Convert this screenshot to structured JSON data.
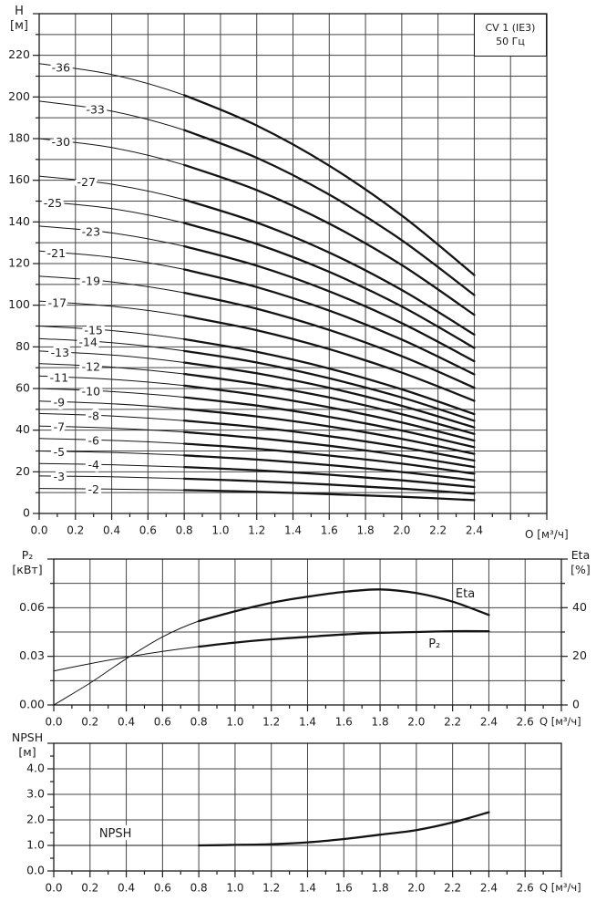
{
  "title_box": {
    "model": "CV 1 (IE3)",
    "frequency": "50 Гц"
  },
  "chart_data": [
    {
      "id": "head-capacity",
      "type": "line",
      "title": "Pump head curves per number of stages",
      "y_label_1": "H",
      "y_label_2": "[м]",
      "x_label": "O [м³/ч]",
      "xlim": [
        0,
        2.8
      ],
      "ylim": [
        0,
        240
      ],
      "x_grid_step": 0.2,
      "y_grid_step": 10,
      "x_minor_step": 0.1,
      "x_label_step": 0.2,
      "y_label_step": 20,
      "grid": true,
      "x_tick_labels": [
        "0.0",
        "0.2",
        "0.4",
        "0.6",
        "0.8",
        "1.0",
        "1.2",
        "1.4",
        "1.6",
        "1.8",
        "2.0",
        "2.2",
        "2.4"
      ],
      "y_tick_labels": [
        "0",
        "20",
        "40",
        "60",
        "80",
        "100",
        "120",
        "140",
        "160",
        "180",
        "200",
        "220"
      ],
      "q": [
        0,
        0.4,
        0.8,
        1.2,
        1.6,
        2.0,
        2.4
      ],
      "bold_from_q": 0.8,
      "curves": [
        {
          "label": "-36",
          "label_q": 0.12,
          "values": [
            216,
            210.8,
            200.9,
            186.3,
            167.0,
            143.1,
            114.5
          ]
        },
        {
          "label": "-33",
          "label_q": 0.31,
          "values": [
            198,
            193.2,
            184.1,
            170.8,
            153.1,
            131.2,
            104.9
          ]
        },
        {
          "label": "-30",
          "label_q": 0.12,
          "values": [
            180,
            175.7,
            167.4,
            155.3,
            139.2,
            119.3,
            95.4
          ]
        },
        {
          "label": "-27",
          "label_q": 0.26,
          "values": [
            162,
            158.1,
            150.7,
            139.7,
            125.3,
            107.3,
            85.9
          ]
        },
        {
          "label": "-25",
          "label_q": 0.075,
          "values": [
            150,
            146.4,
            139.5,
            129.4,
            116.0,
            99.4,
            79.5
          ]
        },
        {
          "label": "-23",
          "label_q": 0.286,
          "values": [
            138,
            134.7,
            128.3,
            119.0,
            106.7,
            91.4,
            73.1
          ]
        },
        {
          "label": "-21",
          "label_q": 0.095,
          "values": [
            126,
            123.0,
            117.2,
            108.7,
            97.4,
            83.5,
            66.8
          ]
        },
        {
          "label": "-19",
          "label_q": 0.286,
          "values": [
            114,
            111.2,
            106.0,
            98.3,
            88.1,
            75.5,
            60.4
          ]
        },
        {
          "label": "-17",
          "label_q": 0.1,
          "values": [
            102,
            99.5,
            94.9,
            88.0,
            78.9,
            67.6,
            54.1
          ]
        },
        {
          "label": "-15",
          "label_q": 0.3,
          "values": [
            90,
            87.8,
            83.7,
            77.6,
            69.6,
            59.6,
            47.7
          ]
        },
        {
          "label": "-14",
          "label_q": 0.27,
          "values": [
            84,
            82.0,
            78.1,
            72.5,
            64.9,
            55.7,
            44.5
          ]
        },
        {
          "label": "-13",
          "label_q": 0.115,
          "values": [
            78,
            76.1,
            72.5,
            67.3,
            60.3,
            51.7,
            41.3
          ]
        },
        {
          "label": "-12",
          "label_q": 0.286,
          "values": [
            72,
            70.3,
            67.0,
            62.1,
            55.7,
            47.7,
            38.2
          ]
        },
        {
          "label": "-11",
          "label_q": 0.11,
          "values": [
            66,
            64.4,
            61.4,
            56.9,
            51.0,
            43.7,
            35.0
          ]
        },
        {
          "label": "-10",
          "label_q": 0.286,
          "values": [
            60,
            58.5,
            55.8,
            51.8,
            46.4,
            39.8,
            31.8
          ]
        },
        {
          "label": "-9",
          "label_q": 0.11,
          "values": [
            54,
            52.7,
            50.2,
            46.6,
            41.8,
            35.8,
            28.6
          ]
        },
        {
          "label": "-8",
          "label_q": 0.3,
          "values": [
            48,
            46.8,
            44.6,
            41.4,
            37.1,
            31.8,
            25.4
          ]
        },
        {
          "label": "-7",
          "label_q": 0.11,
          "values": [
            42,
            41.0,
            39.1,
            36.2,
            32.5,
            27.8,
            22.3
          ]
        },
        {
          "label": "-6",
          "label_q": 0.3,
          "values": [
            36,
            35.1,
            33.5,
            31.1,
            27.8,
            23.9,
            19.1
          ]
        },
        {
          "label": "-5",
          "label_q": 0.11,
          "values": [
            30,
            29.3,
            27.9,
            25.9,
            23.2,
            19.9,
            15.9
          ]
        },
        {
          "label": "-4",
          "label_q": 0.3,
          "values": [
            24,
            23.4,
            22.3,
            20.7,
            18.6,
            15.9,
            12.7
          ]
        },
        {
          "label": "-3",
          "label_q": 0.11,
          "values": [
            18,
            17.6,
            16.7,
            15.5,
            13.9,
            11.9,
            9.5
          ]
        },
        {
          "label": "-2",
          "label_q": 0.3,
          "values": [
            12,
            11.7,
            11.2,
            10.4,
            9.3,
            8.0,
            6.4
          ]
        }
      ]
    },
    {
      "id": "power-efficiency",
      "type": "line",
      "title": "Shaft power P2 and efficiency Eta",
      "y_left_1": "P₂",
      "y_left_2": "[кВт]",
      "y_right_1": "Eta",
      "y_right_2": "[%]",
      "x_label": "Q [м³/ч]",
      "xlim": [
        0,
        2.8
      ],
      "ylim_left": [
        0,
        0.09
      ],
      "ylim_right": [
        0,
        60
      ],
      "x_grid_step": 0.2,
      "y_grid_step_left": 0.015,
      "x_minor_step": 0.1,
      "x_label_step": 0.2,
      "y_left_label_step": 0.03,
      "y_right_label_step": 20,
      "grid": true,
      "x_tick_labels": [
        "0.0",
        "0.2",
        "0.4",
        "0.6",
        "0.8",
        "1.0",
        "1.2",
        "1.4",
        "1.6",
        "1.8",
        "2.0",
        "2.2",
        "2.4",
        "2.6"
      ],
      "y_left_tick_labels": [
        "0.00",
        "0.03",
        "0.06"
      ],
      "y_right_tick_labels": [
        "0",
        "20",
        "40"
      ],
      "q": [
        0,
        0.2,
        0.4,
        0.6,
        0.8,
        1.0,
        1.2,
        1.4,
        1.6,
        1.8,
        2.0,
        2.2,
        2.4
      ],
      "bold_from_q": 0.8,
      "series": [
        {
          "name": "Eta",
          "axis": "right",
          "unit": "%",
          "values": [
            0,
            9,
            19,
            28,
            34.5,
            38.5,
            42,
            44.5,
            46.5,
            47.5,
            46,
            42.5,
            37
          ],
          "label_at": {
            "q": 2.27,
            "v": 45.5
          }
        },
        {
          "name": "P₂",
          "axis": "left",
          "unit": "кВт",
          "values": [
            0.021,
            0.0255,
            0.0295,
            0.033,
            0.036,
            0.0385,
            0.0405,
            0.042,
            0.0435,
            0.0445,
            0.045,
            0.0455,
            0.0455
          ],
          "label_at": {
            "q": 2.1,
            "v": 0.0375
          }
        }
      ]
    },
    {
      "id": "npsh",
      "type": "line",
      "title": "NPSH required",
      "y_label_1": "NPSH",
      "y_label_2": "[м]",
      "x_label": "Q [м³/ч]",
      "xlim": [
        0,
        2.8
      ],
      "ylim": [
        0,
        5
      ],
      "x_grid_step": 0.2,
      "y_grid_step": 1,
      "x_minor_step": 0.1,
      "y_minor_step": 0.5,
      "x_label_step": 0.2,
      "y_label_step": 1,
      "grid": true,
      "x_tick_labels": [
        "0.0",
        "0.2",
        "0.4",
        "0.6",
        "0.8",
        "1.0",
        "1.2",
        "1.4",
        "1.6",
        "1.8",
        "2.0",
        "2.2",
        "2.4",
        "2.6"
      ],
      "y_tick_labels": [
        "0.0",
        "1.0",
        "2.0",
        "3.0",
        "4.0"
      ],
      "q": [
        0,
        0.2,
        0.4,
        0.6,
        0.8,
        1.0,
        1.2,
        1.4,
        1.6,
        1.8,
        2.0,
        2.2,
        2.4
      ],
      "bold_from_q": 0.8,
      "series": [
        {
          "name": "NPSH",
          "axis": "left",
          "unit": "м",
          "values": [
            1.0,
            1.0,
            1.0,
            1.0,
            1.0,
            1.02,
            1.05,
            1.12,
            1.25,
            1.42,
            1.6,
            1.9,
            2.3
          ],
          "label_at": {
            "q": 0.34,
            "v": 1.45
          }
        }
      ]
    }
  ],
  "colors": {
    "line": "#141414",
    "grid": "#444444",
    "frame": "#1c1c1c",
    "text": "#1c1c1c",
    "background": "#ffffff"
  }
}
